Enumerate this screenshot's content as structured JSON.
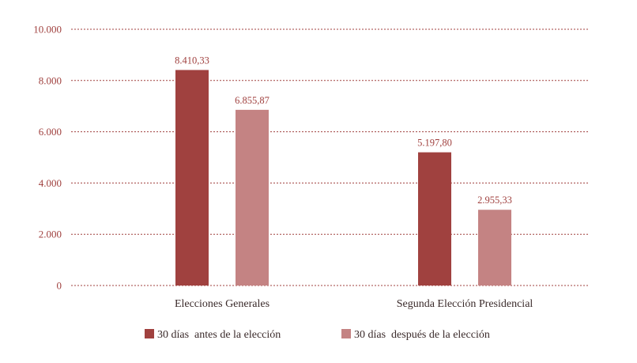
{
  "chart_data": {
    "type": "bar",
    "categories": [
      "Elecciones Generales",
      "Segunda Elección Presidencial"
    ],
    "series": [
      {
        "name": "30 días  antes de la elección",
        "values": [
          8410.33,
          5197.8
        ],
        "labels": [
          "8.410,33",
          "5.197,80"
        ],
        "color": "#a0413f"
      },
      {
        "name": "30 días  después de la elección",
        "values": [
          6855.87,
          2955.33
        ],
        "labels": [
          "6.855,87",
          "2.955,33"
        ],
        "color": "#c48383"
      }
    ],
    "y_ticks": [
      0,
      2000,
      4000,
      6000,
      8000,
      10000
    ],
    "y_tick_labels": [
      "0",
      "2.000",
      "4.000",
      "6.000",
      "8.000",
      "10.000"
    ],
    "ylim": [
      0,
      10000
    ],
    "grid": true,
    "legend": "bottom-center",
    "title": "",
    "xlabel": "",
    "ylabel": ""
  }
}
